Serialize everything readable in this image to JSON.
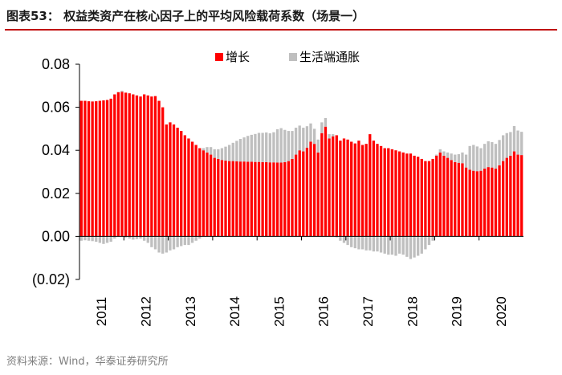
{
  "figure": {
    "title": "图表53： 权益类资产在核心因子上的平均风险载荷系数（场景一）",
    "source": "资料来源：Wind，华泰证券研究所"
  },
  "colors": {
    "growth": "#ff0000",
    "inflation": "#bfbfbf",
    "rule": "#c00000"
  },
  "chart_data": {
    "type": "bar",
    "stacked": true,
    "x_tick_labels": [
      "2011",
      "2012",
      "2013",
      "2014",
      "2015",
      "2016",
      "2017",
      "2018",
      "2019",
      "2020"
    ],
    "y_tick_labels": [
      "0.08",
      "0.06",
      "0.04",
      "0.02",
      "0.00",
      "(0.02)"
    ],
    "ylim": [
      -0.02,
      0.08
    ],
    "legend_position": "top-center",
    "grid": false,
    "start": "2011-01",
    "series": [
      {
        "name": "增长",
        "color": "#ff0000",
        "values": [
          0.063,
          0.063,
          0.0628,
          0.0627,
          0.0628,
          0.063,
          0.0632,
          0.0634,
          0.064,
          0.066,
          0.067,
          0.0672,
          0.0668,
          0.0665,
          0.066,
          0.0655,
          0.065,
          0.066,
          0.0655,
          0.065,
          0.0652,
          0.063,
          0.06,
          0.052,
          0.053,
          0.052,
          0.0505,
          0.049,
          0.047,
          0.0455,
          0.044,
          0.0425,
          0.041,
          0.04,
          0.039,
          0.038,
          0.0365,
          0.036,
          0.0355,
          0.0352,
          0.035,
          0.035,
          0.0349,
          0.0348,
          0.0348,
          0.0347,
          0.0347,
          0.0346,
          0.0346,
          0.0345,
          0.0345,
          0.0344,
          0.0344,
          0.0343,
          0.0343,
          0.0345,
          0.035,
          0.036,
          0.038,
          0.04,
          0.0395,
          0.0412,
          0.044,
          0.043,
          0.039,
          0.048,
          0.051,
          0.0455,
          0.0465,
          0.047,
          0.0445,
          0.0455,
          0.045,
          0.044,
          0.0432,
          0.0445,
          0.0425,
          0.043,
          0.0475,
          0.0445,
          0.043,
          0.042,
          0.041,
          0.041,
          0.0405,
          0.04,
          0.0395,
          0.039,
          0.0385,
          0.0385,
          0.0375,
          0.037,
          0.036,
          0.035,
          0.035,
          0.036,
          0.0375,
          0.039,
          0.0375,
          0.0365,
          0.0355,
          0.0345,
          0.0342,
          0.034,
          0.032,
          0.031,
          0.0305,
          0.0303,
          0.0305,
          0.0315,
          0.0322,
          0.032,
          0.0315,
          0.033,
          0.035,
          0.0365,
          0.0375,
          0.0395,
          0.038,
          0.0378
        ]
      },
      {
        "name": "生活端通胀",
        "color": "#bfbfbf",
        "values": [
          -0.002,
          -0.0018,
          -0.002,
          -0.0022,
          -0.0025,
          -0.003,
          -0.0035,
          -0.003,
          -0.0025,
          -0.001,
          0.0002,
          0.0005,
          -0.0005,
          -0.001,
          -0.0015,
          -0.0012,
          -0.001,
          -0.002,
          -0.003,
          -0.005,
          -0.006,
          -0.0075,
          -0.008,
          -0.0075,
          -0.0065,
          -0.006,
          -0.005,
          -0.0045,
          -0.004,
          -0.004,
          -0.003,
          -0.002,
          -0.001,
          0.001,
          0.0025,
          0.0035,
          0.004,
          0.0045,
          0.0055,
          0.0065,
          0.0075,
          0.0085,
          0.0095,
          0.0105,
          0.0112,
          0.012,
          0.0125,
          0.013,
          0.0135,
          0.0136,
          0.0138,
          0.0135,
          0.014,
          0.0155,
          0.016,
          0.015,
          0.014,
          0.013,
          0.0125,
          0.0115,
          0.011,
          0.01,
          0.0085,
          0.007,
          0.006,
          0.005,
          0.004,
          0.002,
          0.001,
          -0.0005,
          -0.002,
          -0.003,
          -0.004,
          -0.005,
          -0.0055,
          -0.006,
          -0.006,
          -0.0065,
          -0.0065,
          -0.007,
          -0.007,
          -0.0075,
          -0.008,
          -0.0085,
          -0.0085,
          -0.009,
          -0.008,
          -0.0085,
          -0.0095,
          -0.0105,
          -0.0098,
          -0.009,
          -0.008,
          -0.006,
          -0.004,
          -0.002,
          0.0005,
          0.0015,
          0.002,
          0.0025,
          0.003,
          0.0035,
          0.004,
          0.005,
          0.006,
          0.011,
          0.012,
          0.0115,
          0.0105,
          0.0115,
          0.012,
          0.0118,
          0.0115,
          0.0118,
          0.012,
          0.0115,
          0.011,
          0.0118,
          0.0112,
          0.0108
        ]
      }
    ]
  }
}
